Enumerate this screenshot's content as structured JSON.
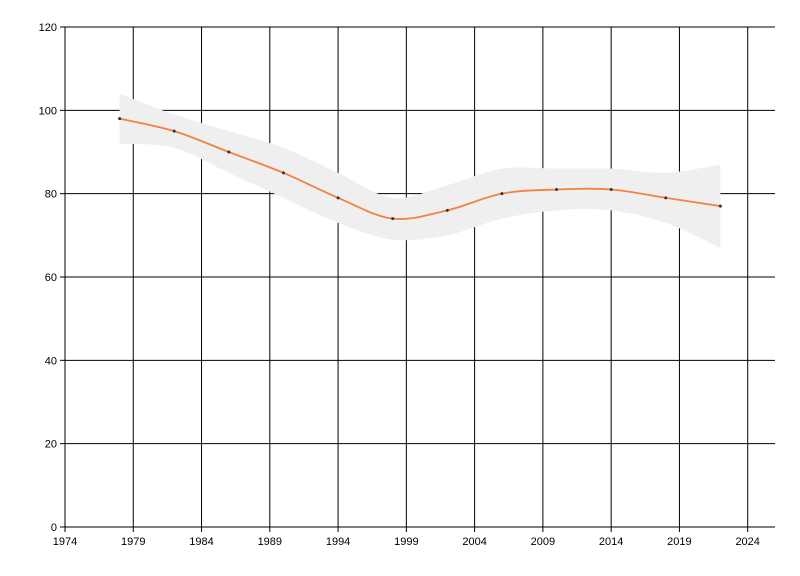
{
  "chart_data": {
    "type": "line",
    "x": [
      1978,
      1982,
      1986,
      1990,
      1994,
      1998,
      2002,
      2006,
      2010,
      2014,
      2018,
      2022
    ],
    "series": [
      {
        "color": "#f5813f",
        "values": [
          98,
          95,
          90,
          85,
          79,
          74,
          76,
          80,
          81,
          81,
          79,
          77
        ]
      }
    ],
    "band": {
      "color": "#efefef",
      "upper": [
        104,
        99,
        95,
        91,
        85,
        79,
        82,
        86,
        86,
        86,
        85,
        87
      ],
      "lower": [
        92,
        91,
        85,
        79,
        73,
        69,
        70,
        74,
        76,
        76,
        73,
        67
      ]
    },
    "marker_color": "#333333",
    "xlim": [
      1974,
      2026
    ],
    "xticks": [
      1974,
      1979,
      1984,
      1989,
      1994,
      1999,
      2004,
      2009,
      2014,
      2019,
      2024
    ],
    "ylim": [
      0,
      120
    ],
    "yticks": [
      0,
      20,
      40,
      60,
      80,
      100,
      120
    ],
    "grid": true
  }
}
